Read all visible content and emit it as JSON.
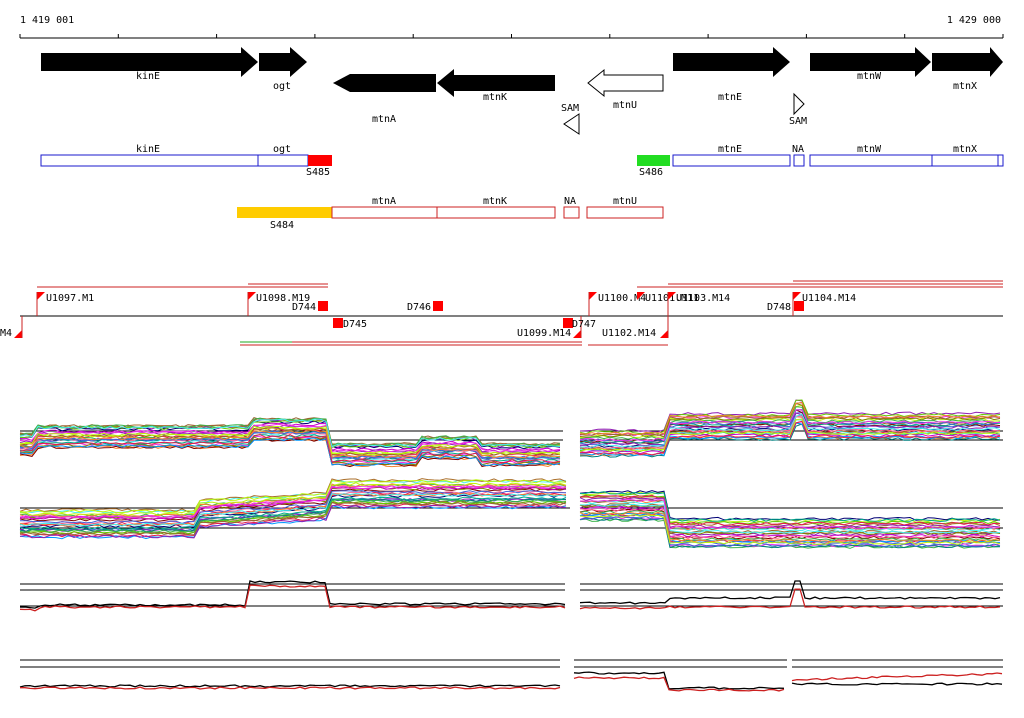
{
  "ruler": {
    "start_label": "1 419 001",
    "end_label": "1 429 000"
  },
  "colors": {
    "gene": "#000000",
    "cds_track": "#1a1acc",
    "rna_track": "#cc2020",
    "s485": "#ff0000",
    "s486": "#22dd22",
    "s484": "#ffcc00",
    "tick_flag": "#ff0000",
    "baseline_track_green": "#22aa22"
  },
  "genes": [
    {
      "label": "kinE",
      "strand": "+",
      "filled": true
    },
    {
      "label": "ogt",
      "strand": "+",
      "filled": true
    },
    {
      "label": "mtnA",
      "strand": "-",
      "filled": true
    },
    {
      "label": "mtnK",
      "strand": "-",
      "filled": true
    },
    {
      "label": "mtnU",
      "strand": "-",
      "filled": false
    },
    {
      "label": "mtnE",
      "strand": "+",
      "filled": true
    },
    {
      "label": "mtnW",
      "strand": "+",
      "filled": true
    },
    {
      "label": "mtnX",
      "strand": "+",
      "filled": true
    }
  ],
  "riboswitches": [
    {
      "label": "SAM",
      "strand": "-"
    },
    {
      "label": "SAM",
      "strand": "+"
    }
  ],
  "cds_track": {
    "boxes": [
      "kinE",
      "ogt",
      "mtnE",
      "NA",
      "mtnW",
      "mtnX"
    ],
    "segments": [
      {
        "label": "S485",
        "color": "#ff0000"
      },
      {
        "label": "S486",
        "color": "#22dd22"
      }
    ]
  },
  "rna_track": {
    "boxes": [
      "mtnA",
      "mtnK",
      "NA",
      "mtnU"
    ],
    "segments": [
      {
        "label": "S484",
        "color": "#ffcc00"
      }
    ]
  },
  "features_upper": [
    {
      "label": "U1097.M1"
    },
    {
      "label": "U1098.M19"
    },
    {
      "label": "D744"
    },
    {
      "label": "D746"
    },
    {
      "label": "U1100.M4"
    },
    {
      "label": "U1101.M11"
    },
    {
      "label": "U1103.M14"
    },
    {
      "label": "D748"
    },
    {
      "label": "U1104.M14"
    }
  ],
  "features_lower": [
    {
      "label": "M4"
    },
    {
      "label": "D745"
    },
    {
      "label": "U1099.M14"
    },
    {
      "label": "D747"
    },
    {
      "label": "U1102.M14"
    }
  ],
  "expression_panels": [
    {
      "name": "plus-strand-conditions"
    },
    {
      "name": "minus-strand-conditions"
    },
    {
      "name": "plus-strand-summary"
    },
    {
      "name": "minus-strand-summary"
    }
  ]
}
